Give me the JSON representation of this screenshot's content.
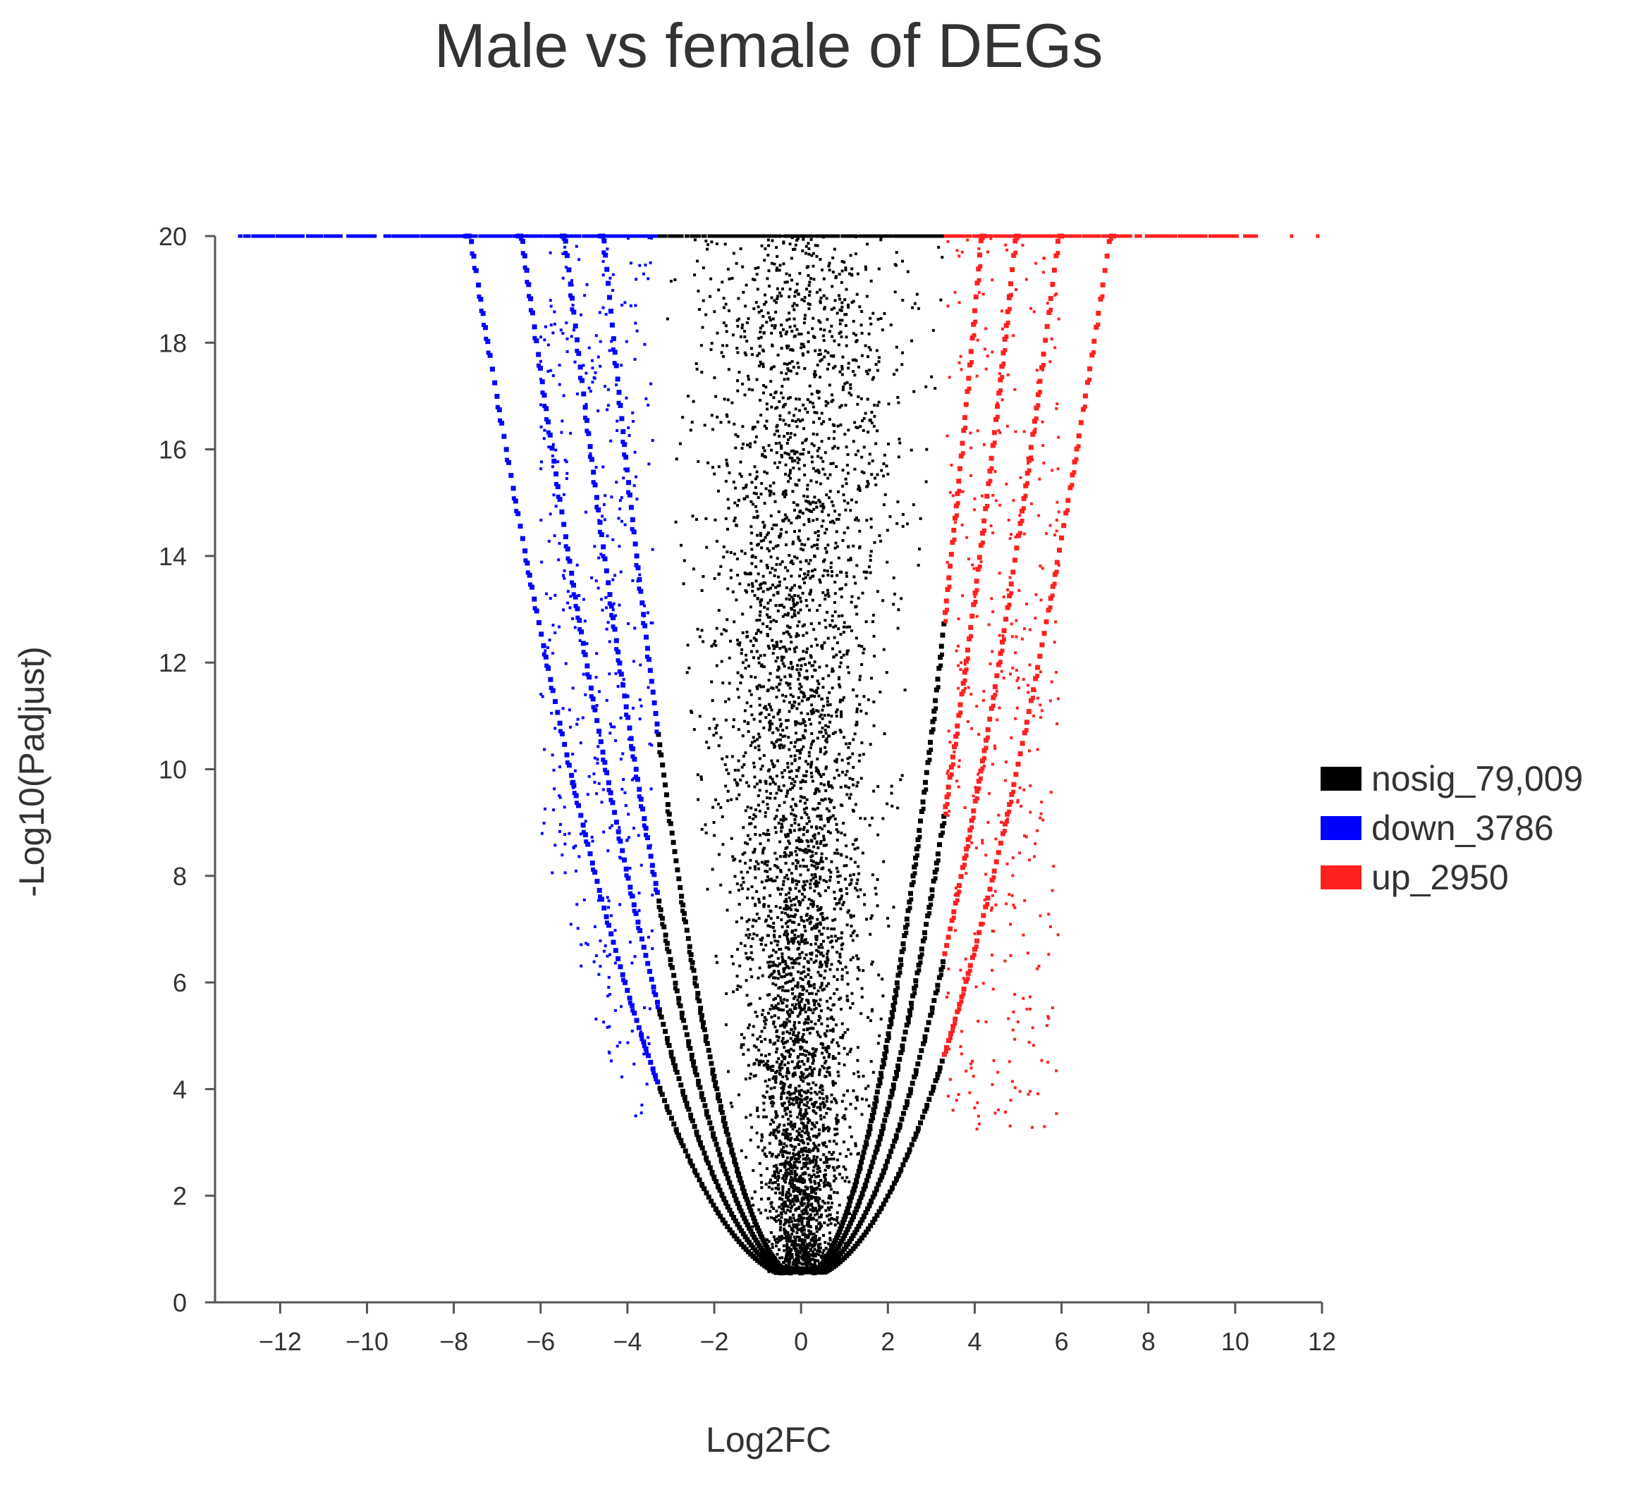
{
  "chart_data": {
    "type": "scatter",
    "subtype": "volcano",
    "title": "Male vs female of DEGs",
    "xlabel": "Log2FC",
    "ylabel": "-Log10(Padjust)",
    "xlim": [
      -13.5,
      12
    ],
    "ylim": [
      0,
      20
    ],
    "x_ticks": [
      -12,
      -10,
      -8,
      -6,
      -4,
      -2,
      0,
      2,
      4,
      6,
      8,
      10,
      12
    ],
    "y_ticks": [
      0,
      2,
      4,
      6,
      8,
      10,
      12,
      14,
      16,
      18,
      20
    ],
    "x_tick_labels": [
      "−12",
      "−10",
      "−8",
      "−6",
      "−4",
      "−2",
      "0",
      "2",
      "4",
      "6",
      "8",
      "10",
      "12"
    ],
    "y_tick_labels": [
      "0",
      "2",
      "4",
      "6",
      "8",
      "10",
      "12",
      "14",
      "16",
      "18",
      "20"
    ],
    "y_cap": 20,
    "fc_threshold": 3.3,
    "p_threshold": 3,
    "legend_position": "right",
    "series": [
      {
        "name": "nosig_79,009",
        "key": "nosig",
        "color": "#000000",
        "count": 79009
      },
      {
        "name": "down_3786",
        "key": "down",
        "color": "#0000ff",
        "count": 3786
      },
      {
        "name": "up_2950",
        "key": "up",
        "color": "#ff2020",
        "count": 2950
      }
    ],
    "boundary_curves": [
      {
        "name": "left-outer",
        "x_at_y20": -7.7
      },
      {
        "name": "left-second",
        "x_at_y20": -6.5
      },
      {
        "name": "left-third",
        "x_at_y20": -5.5
      },
      {
        "name": "left-fourth",
        "x_at_y20": -4.6
      },
      {
        "name": "right-outer",
        "x_at_y20": 7.2
      },
      {
        "name": "right-second",
        "x_at_y20": 6.0
      },
      {
        "name": "right-third",
        "x_at_y20": 5.0
      },
      {
        "name": "right-fourth",
        "x_at_y20": 4.2
      }
    ],
    "annotations": []
  }
}
